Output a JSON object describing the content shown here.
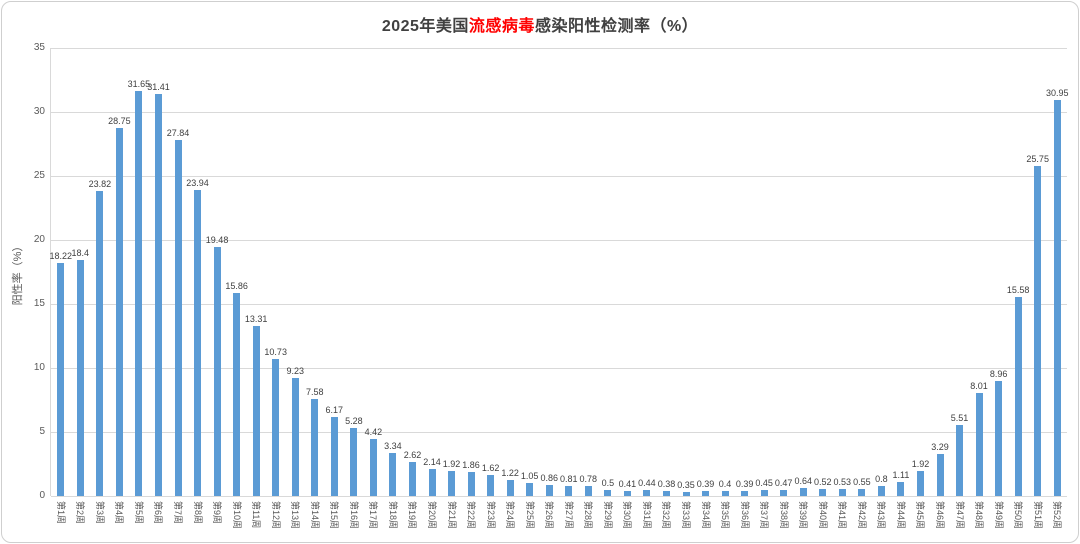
{
  "title": {
    "prefix": "2025年美国",
    "highlight": "流感病毒",
    "suffix": "感染阳性检测率（%）"
  },
  "chart_data": {
    "type": "bar",
    "title": "2025年美国流感病毒感染阳性检测率（%）",
    "xlabel": "",
    "ylabel": "阳性率（%）",
    "ylim": [
      0,
      35
    ],
    "ytick_step": 5,
    "grid": true,
    "legend_position": "none",
    "bar_color": "#5B9BD5",
    "title_highlight_color": "#FF0000",
    "categories": [
      "第1周",
      "第2周",
      "第3周",
      "第4周",
      "第5周",
      "第6周",
      "第7周",
      "第8周",
      "第9周",
      "第10周",
      "第11周",
      "第12周",
      "第13周",
      "第14周",
      "第15周",
      "第16周",
      "第17周",
      "第18周",
      "第19周",
      "第20周",
      "第21周",
      "第22周",
      "第23周",
      "第24周",
      "第25周",
      "第26周",
      "第27周",
      "第28周",
      "第29周",
      "第30周",
      "第31周",
      "第32周",
      "第33周",
      "第34周",
      "第35周",
      "第36周",
      "第37周",
      "第38周",
      "第39周",
      "第40周",
      "第41周",
      "第42周",
      "第43周",
      "第44周",
      "第45周",
      "第46周",
      "第47周",
      "第48周",
      "第49周",
      "第50周",
      "第51周",
      "第52周"
    ],
    "values": [
      18.22,
      18.4,
      23.82,
      28.75,
      31.65,
      31.41,
      27.84,
      23.94,
      19.48,
      15.86,
      13.31,
      10.73,
      9.23,
      7.58,
      6.17,
      5.28,
      4.42,
      3.34,
      2.62,
      2.14,
      1.92,
      1.86,
      1.62,
      1.22,
      1.05,
      0.86,
      0.81,
      0.78,
      0.5,
      0.41,
      0.44,
      0.38,
      0.35,
      0.39,
      0.4,
      0.39,
      0.45,
      0.47,
      0.64,
      0.52,
      0.53,
      0.55,
      0.8,
      1.11,
      1.92,
      3.29,
      5.51,
      8.01,
      8.96,
      15.58,
      25.75,
      30.95
    ],
    "ytick_labels": [
      "0",
      "5",
      "10",
      "15",
      "20",
      "25",
      "30",
      "35"
    ]
  }
}
